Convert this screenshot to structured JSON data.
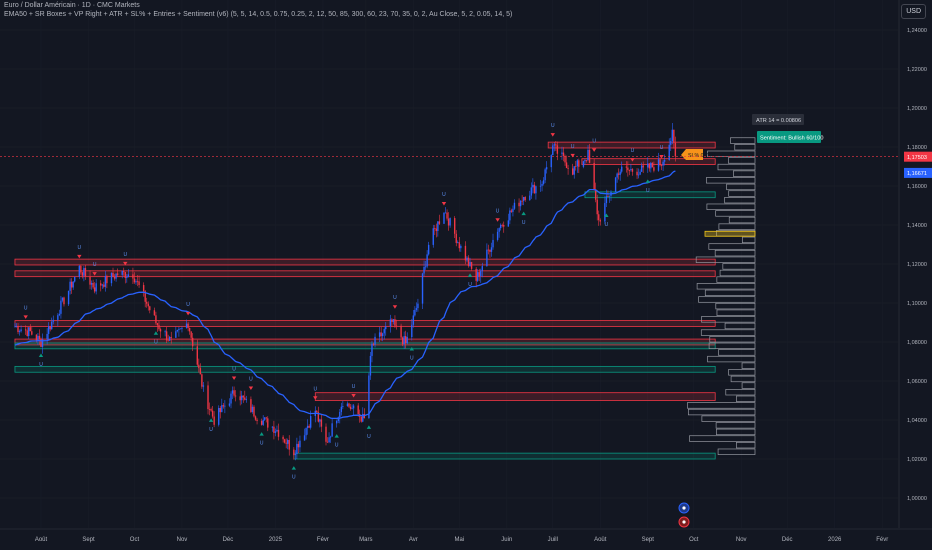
{
  "header": {
    "symbol": "Euro / Dollar Américain · 1D · CMC Markets",
    "indicator": "EMA50 + SR Boxes + VP Right + ATR + SL% + Entries + Sentiment (v6) (5, 5, 14, 0.5, 0.75, 0.25, 2, 12, 50, 85, 300, 60, 23, 70, 35, 0, 2, Au Close, 5, 2, 0.05, 14, 5)"
  },
  "currency_button": "USD",
  "colors": {
    "background": "#131722",
    "up": "#2962ff",
    "down": "#f23645",
    "ema": "#2962ff",
    "resistance": "#f23645",
    "support": "#089981",
    "poc": "#f0c419",
    "sl": "#f7931a",
    "sentiment": "#089981"
  },
  "chart_data": {
    "type": "candlestick",
    "x_ticks": [
      "Août",
      "Sept",
      "Oct",
      "Nov",
      "Déc",
      "2025",
      "Févr",
      "Mars",
      "Avr",
      "Mai",
      "Juin",
      "Juill",
      "Août",
      "Sept",
      "Oct",
      "Nov",
      "Déc",
      "2026",
      "Févr"
    ],
    "y_ticks": [
      "1,24000",
      "1,22000",
      "1,20000",
      "1,18000",
      "1,16000",
      "1,14000",
      "1,12000",
      "1,10000",
      "1,08000",
      "1,06000",
      "1,04000",
      "1,02000",
      "1,00000"
    ],
    "ylim": [
      0.99,
      1.25
    ],
    "ema_period": 50,
    "close_anchors": [
      [
        "2024-07-15",
        1.088
      ],
      [
        "2024-07-25",
        1.085
      ],
      [
        "2024-08-01",
        1.08
      ],
      [
        "2024-08-15",
        1.1
      ],
      [
        "2024-08-26",
        1.118
      ],
      [
        "2024-09-05",
        1.108
      ],
      [
        "2024-09-20",
        1.115
      ],
      [
        "2024-09-30",
        1.115
      ],
      [
        "2024-10-15",
        1.09
      ],
      [
        "2024-10-25",
        1.08
      ],
      [
        "2024-11-05",
        1.09
      ],
      [
        "2024-11-15",
        1.055
      ],
      [
        "2024-11-22",
        1.04
      ],
      [
        "2024-12-06",
        1.055
      ],
      [
        "2024-12-20",
        1.042
      ],
      [
        "2025-01-02",
        1.035
      ],
      [
        "2025-01-13",
        1.024
      ],
      [
        "2025-01-27",
        1.045
      ],
      [
        "2025-02-03",
        1.028
      ],
      [
        "2025-02-14",
        1.05
      ],
      [
        "2025-02-28",
        1.04
      ],
      [
        "2025-03-05",
        1.078
      ],
      [
        "2025-03-18",
        1.09
      ],
      [
        "2025-03-27",
        1.079
      ],
      [
        "2025-04-04",
        1.1
      ],
      [
        "2025-04-11",
        1.13
      ],
      [
        "2025-04-21",
        1.148
      ],
      [
        "2025-05-01",
        1.13
      ],
      [
        "2025-05-12",
        1.112
      ],
      [
        "2025-05-26",
        1.138
      ],
      [
        "2025-06-12",
        1.155
      ],
      [
        "2025-06-24",
        1.162
      ],
      [
        "2025-07-01",
        1.18
      ],
      [
        "2025-07-14",
        1.168
      ],
      [
        "2025-07-24",
        1.176
      ],
      [
        "2025-07-31",
        1.142
      ],
      [
        "2025-08-13",
        1.168
      ],
      [
        "2025-08-29",
        1.168
      ],
      [
        "2025-09-10",
        1.172
      ],
      [
        "2025-09-17",
        1.186
      ],
      [
        "2025-09-19",
        1.1745
      ]
    ],
    "last_close": "1,17503",
    "ema_value": "1,16671",
    "sr_boxes": [
      {
        "type": "resistance",
        "start": "2025-06-28",
        "top": 1.1825,
        "bottom": 1.1795
      },
      {
        "type": "resistance",
        "start": "2025-07-20",
        "top": 1.174,
        "bottom": 1.171
      },
      {
        "type": "support",
        "start": "2025-07-22",
        "top": 1.157,
        "bottom": 1.154
      },
      {
        "type": "resistance",
        "start": "2024-07-15",
        "top": 1.1225,
        "bottom": 1.1195
      },
      {
        "type": "resistance",
        "start": "2024-07-15",
        "top": 1.1165,
        "bottom": 1.1135
      },
      {
        "type": "resistance",
        "start": "2024-07-15",
        "top": 1.091,
        "bottom": 1.088
      },
      {
        "type": "resistance",
        "start": "2024-07-15",
        "top": 1.0815,
        "bottom": 1.0785
      },
      {
        "type": "support",
        "start": "2024-07-15",
        "top": 1.0795,
        "bottom": 1.0765
      },
      {
        "type": "support",
        "start": "2024-07-15",
        "top": 1.0675,
        "bottom": 1.0645
      },
      {
        "type": "resistance",
        "start": "2025-01-27",
        "top": 1.054,
        "bottom": 1.05
      },
      {
        "type": "support",
        "start": "2025-01-13",
        "top": 1.023,
        "bottom": 1.02
      }
    ],
    "volume_profile": {
      "top": 1.185,
      "bottom": 1.022,
      "rows": 48,
      "poc_price": 1.1355,
      "sl_level_price": 1.1755
    },
    "signals": [
      {
        "date": "2024-07-22",
        "type": "sell"
      },
      {
        "date": "2024-08-01",
        "type": "buy"
      },
      {
        "date": "2024-08-26",
        "type": "sell"
      },
      {
        "date": "2024-09-05",
        "type": "sell"
      },
      {
        "date": "2024-09-25",
        "type": "sell"
      },
      {
        "date": "2024-10-15",
        "type": "buy"
      },
      {
        "date": "2024-11-05",
        "type": "sell"
      },
      {
        "date": "2024-11-20",
        "type": "buy"
      },
      {
        "date": "2024-12-05",
        "type": "sell"
      },
      {
        "date": "2024-12-16",
        "type": "sell"
      },
      {
        "date": "2024-12-23",
        "type": "buy"
      },
      {
        "date": "2025-01-13",
        "type": "buy"
      },
      {
        "date": "2025-01-27",
        "type": "sell"
      },
      {
        "date": "2025-02-10",
        "type": "buy"
      },
      {
        "date": "2025-02-21",
        "type": "sell"
      },
      {
        "date": "2025-03-03",
        "type": "buy"
      },
      {
        "date": "2025-03-20",
        "type": "sell"
      },
      {
        "date": "2025-03-31",
        "type": "buy"
      },
      {
        "date": "2025-04-21",
        "type": "sell"
      },
      {
        "date": "2025-05-08",
        "type": "buy"
      },
      {
        "date": "2025-05-26",
        "type": "sell"
      },
      {
        "date": "2025-06-12",
        "type": "buy"
      },
      {
        "date": "2025-07-01",
        "type": "sell"
      },
      {
        "date": "2025-07-14",
        "type": "sell"
      },
      {
        "date": "2025-07-28",
        "type": "sell"
      },
      {
        "date": "2025-08-05",
        "type": "buy"
      },
      {
        "date": "2025-08-22",
        "type": "sell"
      },
      {
        "date": "2025-09-01",
        "type": "buy"
      },
      {
        "date": "2025-09-10",
        "type": "sell"
      }
    ],
    "labels": {
      "atr": "ATR 14 = 0.00806",
      "sentiment": "Sentiment: Bullish 60/100",
      "sl": "SL% 0.73%"
    }
  }
}
